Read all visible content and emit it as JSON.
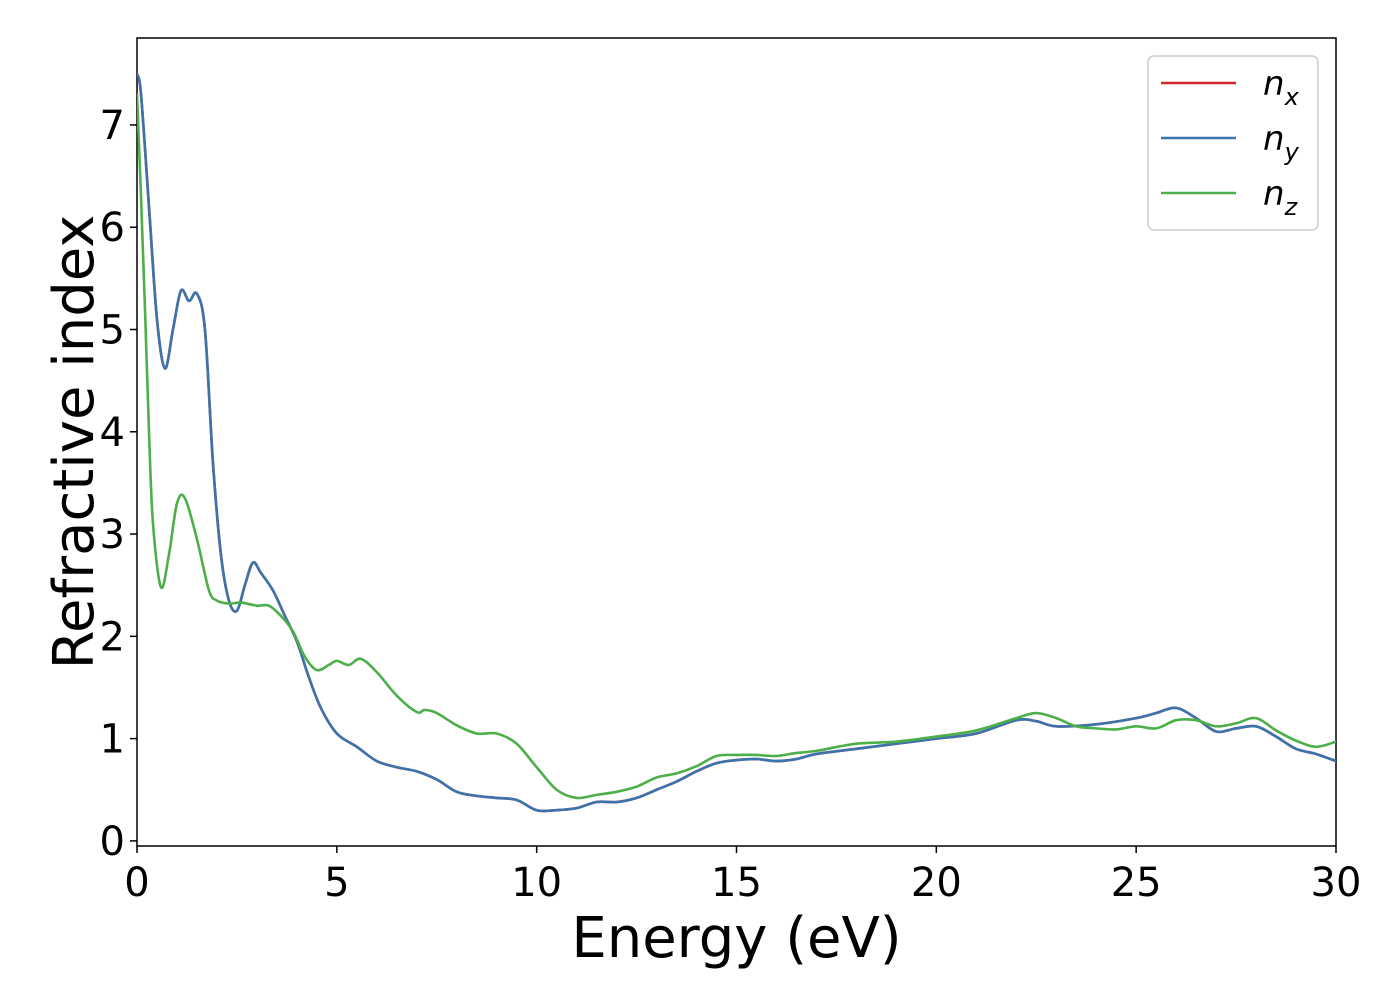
{
  "chart_data": {
    "type": "line",
    "title": "",
    "xlabel": "Energy (eV)",
    "ylabel": "Refractive index",
    "xlim": [
      0,
      30
    ],
    "ylim": [
      -0.05,
      7.85
    ],
    "xticks": [
      0,
      5,
      10,
      15,
      20,
      25,
      30
    ],
    "yticks": [
      0,
      1,
      2,
      3,
      4,
      5,
      6,
      7
    ],
    "grid": false,
    "legend": {
      "position": "top-right"
    },
    "series": [
      {
        "name": "n",
        "subscript": "x",
        "color": "#d62728",
        "x": [
          0,
          0.1,
          0.3,
          0.5,
          0.7,
          0.9,
          1.1,
          1.3,
          1.5,
          1.7,
          1.9,
          2.1,
          2.3,
          2.5,
          2.7,
          2.9,
          3.1,
          3.4,
          3.7,
          4.0,
          4.3,
          4.6,
          5.0,
          5.5,
          6.0,
          6.5,
          7.0,
          7.5,
          8.0,
          8.5,
          9.0,
          9.5,
          10.0,
          10.5,
          11.0,
          11.5,
          12.0,
          12.5,
          13.0,
          13.5,
          14.0,
          14.5,
          15.0,
          15.5,
          16.0,
          16.5,
          17.0,
          18.0,
          19.0,
          20.0,
          21.0,
          22.0,
          22.5,
          23.0,
          24.0,
          25.0,
          25.5,
          26.0,
          26.5,
          27.0,
          27.5,
          28.0,
          28.5,
          29.0,
          29.5,
          30.0
        ],
        "y": [
          7.5,
          7.3,
          6.2,
          5.1,
          4.62,
          5.0,
          5.38,
          5.28,
          5.35,
          5.0,
          3.7,
          2.8,
          2.35,
          2.25,
          2.5,
          2.72,
          2.62,
          2.45,
          2.2,
          1.95,
          1.6,
          1.3,
          1.05,
          0.92,
          0.78,
          0.72,
          0.68,
          0.6,
          0.48,
          0.44,
          0.42,
          0.4,
          0.3,
          0.3,
          0.32,
          0.38,
          0.38,
          0.42,
          0.5,
          0.58,
          0.68,
          0.76,
          0.79,
          0.8,
          0.78,
          0.8,
          0.85,
          0.9,
          0.95,
          1.0,
          1.05,
          1.18,
          1.17,
          1.12,
          1.14,
          1.2,
          1.25,
          1.3,
          1.2,
          1.07,
          1.1,
          1.12,
          1.02,
          0.9,
          0.85,
          0.78
        ]
      },
      {
        "name": "n",
        "subscript": "y",
        "color": "#3a74ad",
        "x": [
          0,
          0.1,
          0.3,
          0.5,
          0.7,
          0.9,
          1.1,
          1.3,
          1.5,
          1.7,
          1.9,
          2.1,
          2.3,
          2.5,
          2.7,
          2.9,
          3.1,
          3.4,
          3.7,
          4.0,
          4.3,
          4.6,
          5.0,
          5.5,
          6.0,
          6.5,
          7.0,
          7.5,
          8.0,
          8.5,
          9.0,
          9.5,
          10.0,
          10.5,
          11.0,
          11.5,
          12.0,
          12.5,
          13.0,
          13.5,
          14.0,
          14.5,
          15.0,
          15.5,
          16.0,
          16.5,
          17.0,
          18.0,
          19.0,
          20.0,
          21.0,
          22.0,
          22.5,
          23.0,
          24.0,
          25.0,
          25.5,
          26.0,
          26.5,
          27.0,
          27.5,
          28.0,
          28.5,
          29.0,
          29.5,
          30.0
        ],
        "y": [
          7.5,
          7.3,
          6.2,
          5.1,
          4.62,
          5.0,
          5.38,
          5.28,
          5.35,
          5.0,
          3.7,
          2.8,
          2.35,
          2.25,
          2.5,
          2.72,
          2.62,
          2.45,
          2.2,
          1.95,
          1.6,
          1.3,
          1.05,
          0.92,
          0.78,
          0.72,
          0.68,
          0.6,
          0.48,
          0.44,
          0.42,
          0.4,
          0.3,
          0.3,
          0.32,
          0.38,
          0.38,
          0.42,
          0.5,
          0.58,
          0.68,
          0.76,
          0.79,
          0.8,
          0.78,
          0.8,
          0.85,
          0.9,
          0.95,
          1.0,
          1.05,
          1.18,
          1.17,
          1.12,
          1.14,
          1.2,
          1.25,
          1.3,
          1.2,
          1.07,
          1.1,
          1.12,
          1.02,
          0.9,
          0.85,
          0.78
        ]
      },
      {
        "name": "n",
        "subscript": "z",
        "color": "#4daf4a",
        "x": [
          0,
          0.1,
          0.2,
          0.3,
          0.4,
          0.6,
          0.8,
          1.0,
          1.2,
          1.5,
          1.8,
          2.0,
          2.3,
          2.6,
          3.0,
          3.3,
          3.6,
          3.9,
          4.2,
          4.5,
          4.8,
          5.0,
          5.3,
          5.6,
          6.0,
          6.5,
          7.0,
          7.2,
          7.5,
          8.0,
          8.5,
          9.0,
          9.5,
          10.0,
          10.5,
          11.0,
          11.5,
          12.0,
          12.5,
          13.0,
          13.5,
          14.0,
          14.5,
          15.0,
          15.5,
          16.0,
          16.5,
          17.0,
          18.0,
          19.0,
          20.0,
          21.0,
          22.0,
          22.5,
          23.0,
          23.5,
          24.0,
          24.5,
          25.0,
          25.5,
          26.0,
          26.5,
          27.0,
          27.5,
          28.0,
          28.5,
          29.0,
          29.5,
          30.0
        ],
        "y": [
          7.3,
          6.3,
          5.2,
          4.0,
          3.1,
          2.48,
          2.8,
          3.3,
          3.35,
          2.95,
          2.45,
          2.35,
          2.32,
          2.33,
          2.3,
          2.3,
          2.2,
          2.05,
          1.8,
          1.67,
          1.72,
          1.76,
          1.72,
          1.78,
          1.65,
          1.42,
          1.26,
          1.28,
          1.25,
          1.13,
          1.05,
          1.05,
          0.95,
          0.72,
          0.5,
          0.42,
          0.45,
          0.48,
          0.53,
          0.62,
          0.66,
          0.73,
          0.83,
          0.84,
          0.84,
          0.83,
          0.86,
          0.88,
          0.95,
          0.97,
          1.02,
          1.08,
          1.2,
          1.25,
          1.2,
          1.12,
          1.1,
          1.09,
          1.12,
          1.1,
          1.18,
          1.18,
          1.12,
          1.15,
          1.2,
          1.08,
          0.98,
          0.92,
          0.97
        ]
      }
    ]
  }
}
